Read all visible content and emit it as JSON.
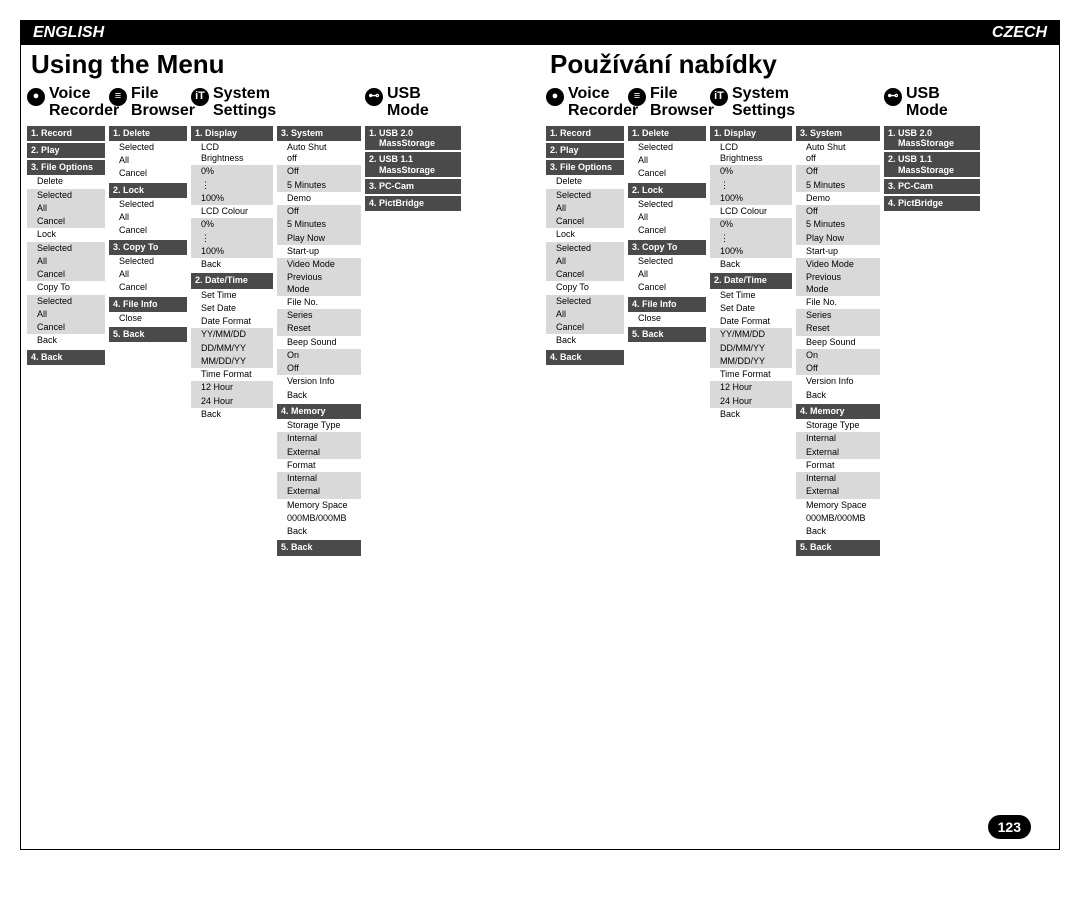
{
  "page_number": "123",
  "colors": {
    "dark_header": "#4a4a4a",
    "light_box": "#d9d9d9",
    "black": "#000000",
    "white": "#ffffff"
  },
  "english": {
    "lang_label": "ENGLISH",
    "title": "Using the Menu"
  },
  "czech": {
    "lang_label": "CZECH",
    "title": "Používání nabídky"
  },
  "headers": {
    "voice": "Voice\nRecorder",
    "file": "File\nBrowser",
    "system": "System\nSettings",
    "usb": "USB\nMode"
  },
  "voice_col": {
    "h1": "1. Record",
    "h2": "2. Play",
    "h3": "3. File Options",
    "delete": "Delete",
    "lock": "Lock",
    "copy": "Copy To",
    "opts": [
      "Selected",
      "All",
      "Cancel"
    ],
    "back_plain": "Back",
    "h4": "4. Back"
  },
  "file_col": {
    "h1": "1. Delete",
    "h2": "2. Lock",
    "h3": "3. Copy To",
    "opts": [
      "Selected",
      "All",
      "Cancel"
    ],
    "h4": "4. File Info",
    "close": "Close",
    "h5": "5. Back"
  },
  "sys1_col": {
    "h1": "1. Display",
    "lcd_bright": "LCD\nBrightness",
    "pct": [
      "0%",
      "⋮",
      "100%"
    ],
    "lcd_colour": "LCD Colour",
    "pct2": [
      "0%",
      "⋮",
      "100%"
    ],
    "back": "Back",
    "h2": "2. Date/Time",
    "set_time": "Set Time",
    "set_date": "Set Date",
    "date_format": "Date Format",
    "date_opts": [
      "YY/MM/DD",
      "DD/MM/YY",
      "MM/DD/YY"
    ],
    "time_format": "Time Format",
    "time_opts": [
      "12 Hour",
      "24 Hour"
    ]
  },
  "sys2_col": {
    "h3": "3. System",
    "auto_shut": "Auto Shut\noff",
    "auto_opts": [
      "Off",
      "5 Minutes"
    ],
    "demo": "Demo",
    "demo_opts": [
      "Off",
      "5 Minutes",
      "Play Now"
    ],
    "startup": "Start-up",
    "startup_opts": [
      "Video Mode",
      "Previous\nMode"
    ],
    "fileno": "File No.",
    "fileno_opts": [
      "Series",
      "Reset"
    ],
    "beep": "Beep Sound",
    "beep_opts": [
      "On",
      "Off"
    ],
    "version": "Version Info",
    "back": "Back",
    "h4": "4. Memory",
    "storage": "Storage Type",
    "storage_opts": [
      "Internal",
      "External"
    ],
    "format": "Format",
    "format_opts": [
      "Internal",
      "External"
    ],
    "memspace": "Memory Space",
    "memspace_val": "000MB/000MB",
    "h5": "5. Back"
  },
  "usb_col": {
    "h1": "1. USB 2.0\n    MassStorage",
    "h2": "2. USB 1.1\n    MassStorage",
    "h3": "3. PC-Cam",
    "h4": "4. PictBridge"
  }
}
